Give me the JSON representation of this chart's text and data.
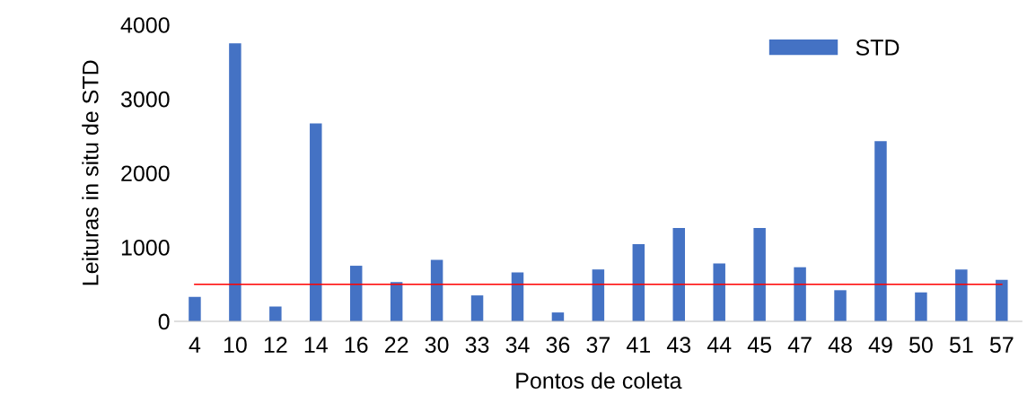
{
  "chart_data": {
    "type": "bar",
    "xlabel": "Pontos de coleta",
    "ylabel": "Leituras in situ de STD",
    "categories": [
      "4",
      "10",
      "12",
      "14",
      "16",
      "22",
      "30",
      "33",
      "34",
      "36",
      "37",
      "41",
      "43",
      "44",
      "45",
      "47",
      "48",
      "49",
      "50",
      "51",
      "57"
    ],
    "series": [
      {
        "name": "STD",
        "color": "#4472c4",
        "values": [
          330,
          3750,
          200,
          2670,
          750,
          530,
          830,
          350,
          660,
          120,
          700,
          1040,
          1260,
          780,
          1260,
          730,
          420,
          2430,
          390,
          700,
          560
        ]
      }
    ],
    "ylim": [
      0,
      4000
    ],
    "yticks": [
      0,
      1000,
      2000,
      3000,
      4000
    ],
    "grid": false,
    "legend": "top right",
    "ref_lines": [
      {
        "axis": "y",
        "value": 500,
        "color": "#ff0000"
      }
    ]
  }
}
